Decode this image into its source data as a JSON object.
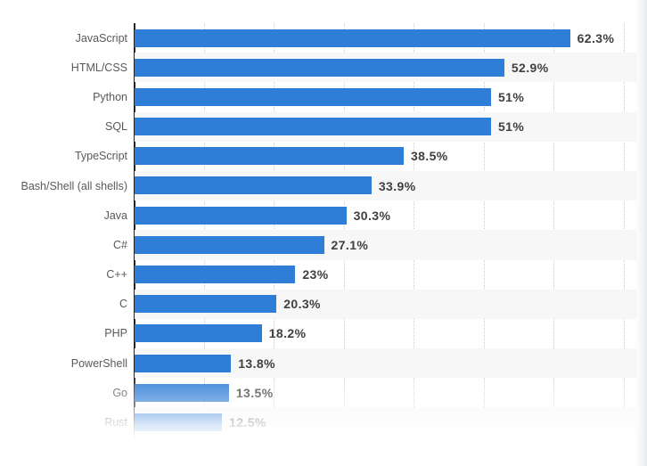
{
  "chart_data": {
    "type": "bar",
    "orientation": "horizontal",
    "categories": [
      "JavaScript",
      "HTML/CSS",
      "Python",
      "SQL",
      "TypeScript",
      "Bash/Shell (all shells)",
      "Java",
      "C#",
      "C++",
      "C",
      "PHP",
      "PowerShell",
      "Go",
      "Rust"
    ],
    "values": [
      62.3,
      52.9,
      51,
      51,
      38.5,
      33.9,
      30.3,
      27.1,
      23,
      20.3,
      18.2,
      13.8,
      13.5,
      12.5
    ],
    "value_labels": [
      "62.3%",
      "52.9%",
      "51%",
      "51%",
      "38.5%",
      "33.9%",
      "30.3%",
      "27.1%",
      "23%",
      "20.3%",
      "18.2%",
      "13.8%",
      "13.5%",
      "12.5%"
    ],
    "xlim": [
      0,
      70
    ],
    "gridline_step": 10,
    "grid": "dotted-vertical",
    "legend": "none",
    "layout_hints": {
      "last_row_faded": true,
      "alternating_row_bands": true
    }
  },
  "colors": {
    "bar": "#2E7DD7",
    "axis": "#222222",
    "gridline": "#c9c9c9",
    "row_band": "#f7f7f8",
    "category_label": "#595959",
    "value_label": "#404040",
    "background": "#ffffff"
  }
}
